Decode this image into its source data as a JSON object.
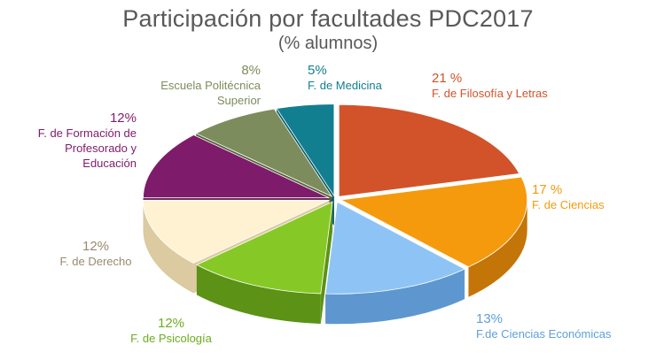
{
  "chart_data": {
    "type": "pie",
    "title": "Participación por facultades PDC2017",
    "subtitle": "(% alumnos)",
    "slices": [
      {
        "label": "F. de Filosofía y Letras",
        "pct_label": "21 %",
        "value": 21,
        "top": "#d2532a",
        "side": "#a83d18",
        "text_color": "#d2532a"
      },
      {
        "label": "F. de Ciencias",
        "pct_label": "17 %",
        "value": 17,
        "top": "#f59a0d",
        "side": "#c47508",
        "text_color": "#f59a0d"
      },
      {
        "label": "F.de Ciencias Económicas",
        "pct_label": "13%",
        "value": 13,
        "top": "#8ec4f5",
        "side": "#5e97cf",
        "text_color": "#5f9fdc"
      },
      {
        "label": "F. de Psicología",
        "pct_label": "12%",
        "value": 12,
        "top": "#86c926",
        "side": "#5c9216",
        "text_color": "#6bad1f"
      },
      {
        "label": "F. de Derecho",
        "pct_label": "12%",
        "value": 12,
        "top": "#fff2d3",
        "side": "#dccaa0",
        "text_color": "#998a6e"
      },
      {
        "label": "F. de Formación de Profesorado y Educación",
        "pct_label": "12%",
        "value": 12,
        "top": "#7f1b6b",
        "side": "#58104a",
        "text_color": "#7f1b6b"
      },
      {
        "label": "Escuela Politécnica Superior",
        "pct_label": "8%",
        "value": 8,
        "top": "#7c8c5c",
        "side": "#56633d",
        "text_color": "#7c8c5c"
      },
      {
        "label": "F. de Medicina",
        "pct_label": "5%",
        "value": 5,
        "top": "#117f90",
        "side": "#0a5b68",
        "text_color": "#117f90"
      }
    ]
  }
}
